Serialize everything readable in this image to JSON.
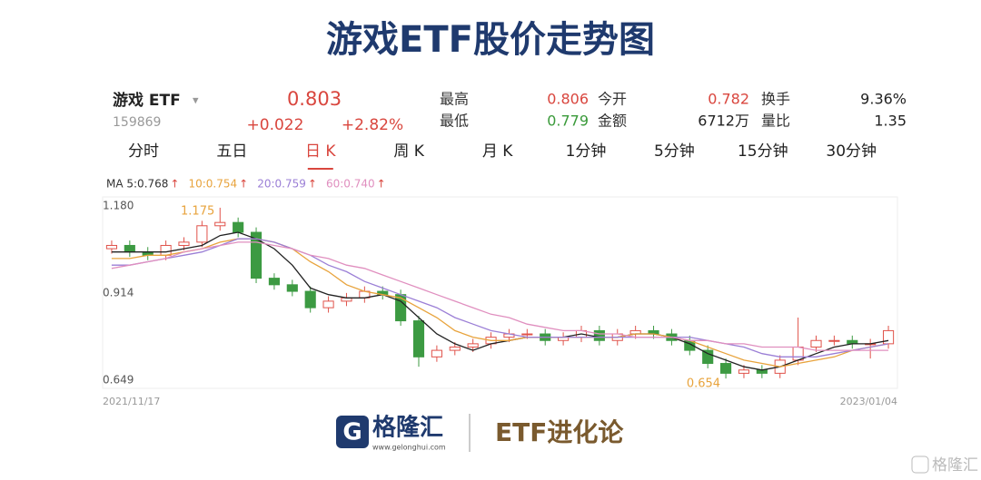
{
  "title": "游戏ETF股价走势图",
  "quote": {
    "name": "游戏 ETF",
    "dropdown": "▾",
    "code": "159869",
    "price": "0.803",
    "change": "+0.022",
    "change_pct": "+2.82%",
    "stats": [
      {
        "label": "最高",
        "value": "0.806",
        "color": "#d9463e"
      },
      {
        "label": "今开",
        "value": "0.782",
        "color": "#d9463e"
      },
      {
        "label": "换手",
        "value": "9.36%",
        "color": "#222222"
      },
      {
        "label": "最低",
        "value": "0.779",
        "color": "#3a9a3a"
      },
      {
        "label": "金额",
        "value": "6712万",
        "color": "#222222"
      },
      {
        "label": "量比",
        "value": "1.35",
        "color": "#222222"
      }
    ]
  },
  "tabs": [
    "分时",
    "五日",
    "日 K",
    "周 K",
    "月 K",
    "1分钟",
    "5分钟",
    "15分钟",
    "30分钟"
  ],
  "active_tab": 2,
  "chart_data": {
    "type": "candlestick",
    "ylim": [
      0.624,
      1.208
    ],
    "yticks": [
      {
        "value": 1.18,
        "label": "1.180"
      },
      0.914,
      0.649
    ],
    "date_labels": [
      "2021/11/17",
      "2023/01/04"
    ],
    "max_label": "1.175",
    "min_label": "0.654",
    "up_color": "#e0524a",
    "down_color": "#3c9a42",
    "candles": {
      "open": [
        1.05,
        1.06,
        1.04,
        1.03,
        1.06,
        1.07,
        1.12,
        1.13,
        1.1,
        0.96,
        0.94,
        0.92,
        0.87,
        0.89,
        0.9,
        0.92,
        0.91,
        0.83,
        0.72,
        0.74,
        0.75,
        0.76,
        0.78,
        0.79,
        0.79,
        0.77,
        0.78,
        0.8,
        0.77,
        0.79,
        0.8,
        0.79,
        0.77,
        0.74,
        0.7,
        0.67,
        0.68,
        0.67,
        0.71,
        0.75,
        0.77,
        0.77,
        0.76,
        0.76
      ],
      "high": [
        1.075,
        1.075,
        1.055,
        1.075,
        1.085,
        1.135,
        1.175,
        1.145,
        1.115,
        0.975,
        0.955,
        0.935,
        0.905,
        0.915,
        0.935,
        0.935,
        0.925,
        0.845,
        0.755,
        0.765,
        0.775,
        0.795,
        0.805,
        0.805,
        0.805,
        0.795,
        0.815,
        0.815,
        0.805,
        0.815,
        0.815,
        0.805,
        0.785,
        0.755,
        0.715,
        0.695,
        0.695,
        0.725,
        0.84,
        0.785,
        0.785,
        0.785,
        0.775,
        0.815
      ],
      "low": [
        1.035,
        1.025,
        1.015,
        1.015,
        1.045,
        1.055,
        1.105,
        1.085,
        0.945,
        0.925,
        0.905,
        0.855,
        0.855,
        0.875,
        0.885,
        0.895,
        0.815,
        0.69,
        0.705,
        0.725,
        0.735,
        0.745,
        0.765,
        0.775,
        0.755,
        0.755,
        0.765,
        0.755,
        0.755,
        0.775,
        0.775,
        0.755,
        0.725,
        0.685,
        0.654,
        0.655,
        0.655,
        0.655,
        0.695,
        0.735,
        0.755,
        0.745,
        0.715,
        0.745
      ],
      "close": [
        1.06,
        1.04,
        1.03,
        1.06,
        1.07,
        1.12,
        1.13,
        1.1,
        0.96,
        0.94,
        0.92,
        0.87,
        0.89,
        0.9,
        0.92,
        0.91,
        0.83,
        0.72,
        0.74,
        0.75,
        0.76,
        0.78,
        0.79,
        0.79,
        0.77,
        0.78,
        0.8,
        0.77,
        0.79,
        0.8,
        0.79,
        0.77,
        0.74,
        0.7,
        0.67,
        0.68,
        0.67,
        0.71,
        0.75,
        0.77,
        0.77,
        0.76,
        0.76,
        0.8
      ]
    },
    "series": [
      {
        "name": "MA 5:0.768",
        "trend": "↑",
        "color": "#222222",
        "values": [
          1.04,
          1.04,
          1.04,
          1.04,
          1.05,
          1.06,
          1.09,
          1.1,
          1.08,
          1.05,
          1.0,
          0.93,
          0.91,
          0.9,
          0.9,
          0.91,
          0.89,
          0.84,
          0.79,
          0.76,
          0.74,
          0.76,
          0.77,
          0.78,
          0.78,
          0.78,
          0.79,
          0.78,
          0.78,
          0.79,
          0.79,
          0.78,
          0.76,
          0.73,
          0.71,
          0.69,
          0.68,
          0.69,
          0.71,
          0.73,
          0.75,
          0.76,
          0.76,
          0.77
        ]
      },
      {
        "name": "10:0.754",
        "trend": "↑",
        "color": "#e8a33c",
        "values": [
          1.02,
          1.02,
          1.03,
          1.03,
          1.04,
          1.05,
          1.07,
          1.08,
          1.08,
          1.07,
          1.05,
          1.01,
          0.98,
          0.94,
          0.92,
          0.91,
          0.9,
          0.87,
          0.84,
          0.8,
          0.78,
          0.77,
          0.77,
          0.78,
          0.78,
          0.78,
          0.78,
          0.78,
          0.78,
          0.79,
          0.79,
          0.78,
          0.77,
          0.75,
          0.73,
          0.71,
          0.7,
          0.69,
          0.7,
          0.71,
          0.72,
          0.74,
          0.75,
          0.76
        ]
      },
      {
        "name": "20:0.759",
        "trend": "↑",
        "color": "#9b7fd6",
        "values": [
          1.0,
          1.0,
          1.01,
          1.02,
          1.03,
          1.04,
          1.06,
          1.08,
          1.08,
          1.07,
          1.05,
          1.03,
          1.0,
          0.98,
          0.95,
          0.93,
          0.91,
          0.89,
          0.87,
          0.84,
          0.82,
          0.8,
          0.79,
          0.78,
          0.78,
          0.78,
          0.78,
          0.78,
          0.78,
          0.78,
          0.78,
          0.78,
          0.78,
          0.77,
          0.76,
          0.75,
          0.73,
          0.72,
          0.72,
          0.72,
          0.73,
          0.74,
          0.75,
          0.76
        ]
      },
      {
        "name": "60:0.740",
        "trend": "↑",
        "color": "#e08fbf",
        "values": [
          0.99,
          1.0,
          1.01,
          1.02,
          1.04,
          1.05,
          1.06,
          1.07,
          1.07,
          1.06,
          1.05,
          1.03,
          1.02,
          1.0,
          0.99,
          0.97,
          0.95,
          0.93,
          0.91,
          0.89,
          0.87,
          0.85,
          0.84,
          0.82,
          0.81,
          0.8,
          0.8,
          0.79,
          0.79,
          0.78,
          0.78,
          0.78,
          0.77,
          0.77,
          0.76,
          0.76,
          0.75,
          0.75,
          0.75,
          0.74,
          0.74,
          0.74,
          0.74,
          0.74
        ]
      }
    ]
  },
  "footer": {
    "logo_letter": "G",
    "brand": "格隆汇",
    "url": "www.gelonghui.com",
    "column": "ETF进化论",
    "watermark": "格隆汇"
  }
}
